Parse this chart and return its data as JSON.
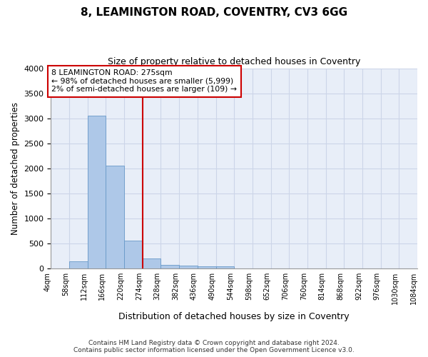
{
  "title": "8, LEAMINGTON ROAD, COVENTRY, CV3 6GG",
  "subtitle": "Size of property relative to detached houses in Coventry",
  "xlabel": "Distribution of detached houses by size in Coventry",
  "ylabel": "Number of detached properties",
  "footer_line1": "Contains HM Land Registry data © Crown copyright and database right 2024.",
  "footer_line2": "Contains public sector information licensed under the Open Government Licence v3.0.",
  "bins": [
    4,
    58,
    112,
    166,
    220,
    274,
    328,
    382,
    436,
    490,
    544,
    598,
    652,
    706,
    760,
    814,
    868,
    922,
    976,
    1030,
    1084
  ],
  "bar_values": [
    0,
    140,
    3050,
    2050,
    550,
    200,
    75,
    55,
    45,
    45,
    0,
    0,
    0,
    0,
    0,
    0,
    0,
    0,
    0,
    0
  ],
  "bar_color": "#aec8e8",
  "bar_edge_color": "#6899c8",
  "grid_color": "#ccd5e8",
  "background_color": "#e8eef8",
  "red_line_x": 274,
  "annotation_line1": "8 LEAMINGTON ROAD: 275sqm",
  "annotation_line2": "← 98% of detached houses are smaller (5,999)",
  "annotation_line3": "2% of semi-detached houses are larger (109) →",
  "annotation_box_color": "#cc0000",
  "ylim": [
    0,
    4000
  ],
  "yticks": [
    0,
    500,
    1000,
    1500,
    2000,
    2500,
    3000,
    3500,
    4000
  ],
  "title_fontsize": 11,
  "subtitle_fontsize": 9
}
